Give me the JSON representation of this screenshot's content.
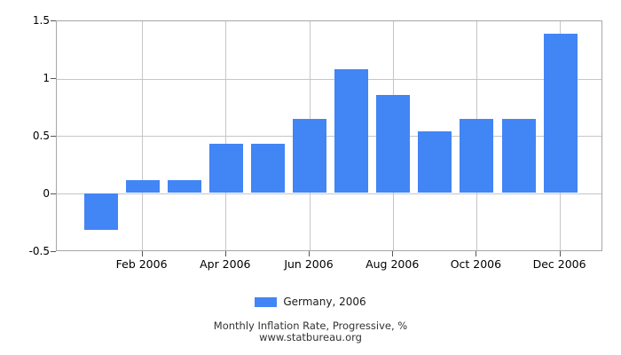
{
  "chart_data": {
    "type": "bar",
    "title": "Monthly Inflation Rate, Progressive, %",
    "source": "www.statbureau.org",
    "legend": "Germany, 2006",
    "legend_position": "bottom-center",
    "categories": [
      "Jan 2006",
      "Feb 2006",
      "Mar 2006",
      "Apr 2006",
      "May 2006",
      "Jun 2006",
      "Jul 2006",
      "Aug 2006",
      "Sep 2006",
      "Oct 2006",
      "Nov 2006",
      "Dec 2006"
    ],
    "values": [
      -0.32,
      0.11,
      0.11,
      0.43,
      0.43,
      0.65,
      1.08,
      0.86,
      0.54,
      0.65,
      0.65,
      1.39
    ],
    "xlabel": "",
    "ylabel": "",
    "ylim": [
      -0.5,
      1.5
    ],
    "grid": true,
    "yticks": [
      {
        "label": "1.5",
        "value": 1.5
      },
      {
        "label": "1",
        "value": 1.0
      },
      {
        "label": "0.5",
        "value": 0.5
      },
      {
        "label": "0",
        "value": 0.0
      },
      {
        "label": "-0.5",
        "value": -0.5
      }
    ],
    "xticks": [
      {
        "label": "Feb 2006",
        "month_index": 1
      },
      {
        "label": "Apr 2006",
        "month_index": 3
      },
      {
        "label": "Jun 2006",
        "month_index": 5
      },
      {
        "label": "Aug 2006",
        "month_index": 7
      },
      {
        "label": "Oct 2006",
        "month_index": 9
      },
      {
        "label": "Dec 2006",
        "month_index": 11
      }
    ],
    "colors": {
      "bar": "#4285f4",
      "grid": "#c6c6c6",
      "border": "#a6a6a6",
      "tick": "#555555"
    }
  }
}
